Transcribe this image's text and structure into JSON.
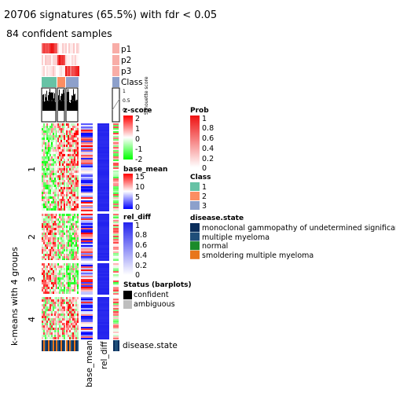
{
  "chart_data": {
    "type": "heatmap",
    "title": "20706 signatures (65.5%) with fdr < 0.05",
    "subtitle": "84 confident samples",
    "row_split_title": "k-means with 4 groups",
    "row_groups": [
      "1",
      "2",
      "3",
      "4"
    ],
    "top_tracks": [
      "p1",
      "p2",
      "p3",
      "Class"
    ],
    "silhouette_label": "Silhouette\nscore",
    "silhouette_ticks": [
      "1",
      "0.5",
      "0"
    ],
    "bottom_track": "disease.state",
    "column_labels": [
      "base_mean",
      "rel_diff"
    ],
    "legends": {
      "prob": {
        "title": "Prob",
        "ticks": [
          "1",
          "0.8",
          "0.6",
          "0.4",
          "0.2",
          "0"
        ]
      },
      "class": {
        "title": "Class",
        "items": [
          {
            "label": "1",
            "color": "#66C2A5"
          },
          {
            "label": "2",
            "color": "#FC8D62"
          },
          {
            "label": "3",
            "color": "#8DA0CB"
          }
        ]
      },
      "zscore": {
        "title": "z-score",
        "ticks": [
          "2",
          "1",
          "0",
          "-1",
          "-2"
        ]
      },
      "base_mean": {
        "title": "base_mean",
        "ticks": [
          "15",
          "10",
          "5",
          "0"
        ]
      },
      "rel_diff": {
        "title": "rel_diff",
        "ticks": [
          "1",
          "0.8",
          "0.6",
          "0.4",
          "0.2",
          "0"
        ]
      },
      "disease": {
        "title": "disease.state",
        "items": [
          {
            "label": "monoclonal gammopathy of undetermined significance",
            "color": "#0B2E5C"
          },
          {
            "label": "multiple myeloma",
            "color": "#1F4E79"
          },
          {
            "label": "normal",
            "color": "#1B8A2A"
          },
          {
            "label": "smoldering multiple myeloma",
            "color": "#E8761B"
          }
        ]
      },
      "status": {
        "title": "Status (barplots)",
        "items": [
          {
            "label": "confident",
            "color": "#000000"
          },
          {
            "label": "ambiguous",
            "color": "#BEBEBE"
          }
        ]
      }
    }
  }
}
